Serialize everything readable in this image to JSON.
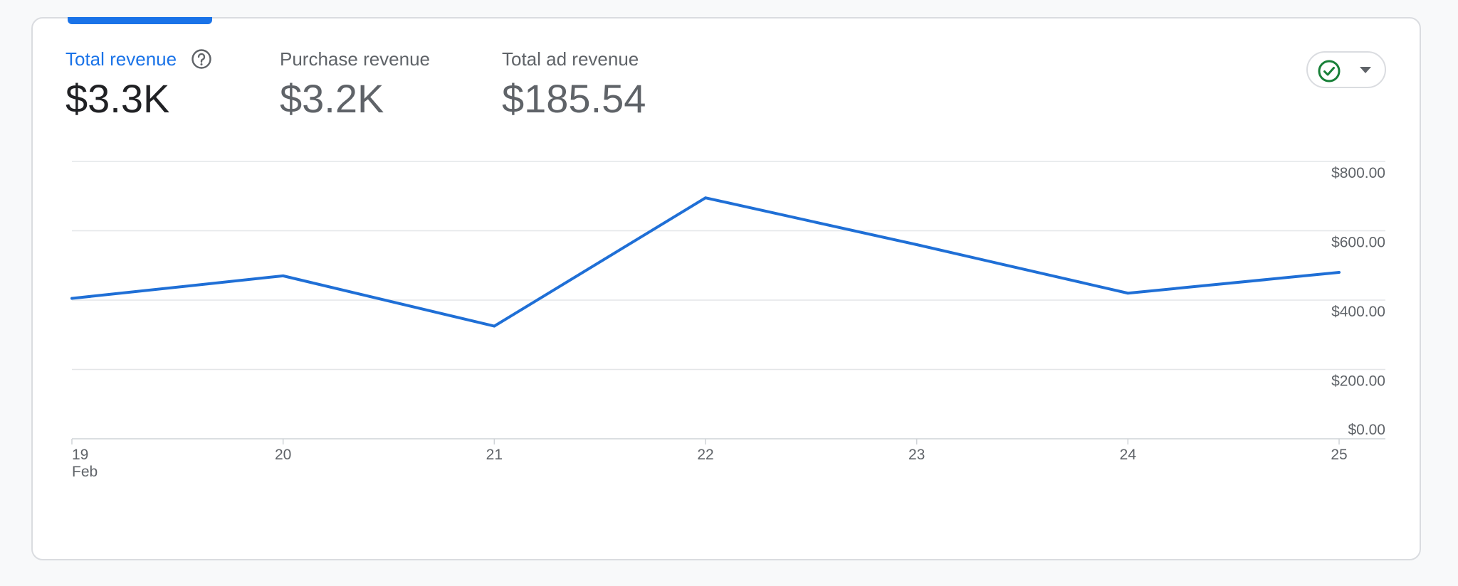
{
  "metrics": [
    {
      "label": "Total revenue",
      "value": "$3.3K",
      "active": true
    },
    {
      "label": "Purchase revenue",
      "value": "$3.2K",
      "active": false
    },
    {
      "label": "Total ad revenue",
      "value": "$185.54",
      "active": false
    }
  ],
  "icons": {
    "help": "help-circle-icon",
    "status": "check-circle-icon",
    "dropdown": "caret-down-icon"
  },
  "colors": {
    "accent": "#1a73e8",
    "line": "#1f6fd6",
    "status_green": "#188038"
  },
  "chart_data": {
    "type": "line",
    "x": [
      "19",
      "20",
      "21",
      "22",
      "23",
      "24",
      "25"
    ],
    "x_sublabel": "Feb",
    "series": [
      {
        "values": [
          405,
          470,
          325,
          695,
          560,
          420,
          480
        ]
      }
    ],
    "ylim": [
      0,
      800
    ],
    "y_ticks": [
      "$0.00",
      "$200.00",
      "$400.00",
      "$600.00",
      "$800.00"
    ],
    "y_tick_values": [
      0,
      200,
      400,
      600,
      800
    ],
    "grid": true
  }
}
